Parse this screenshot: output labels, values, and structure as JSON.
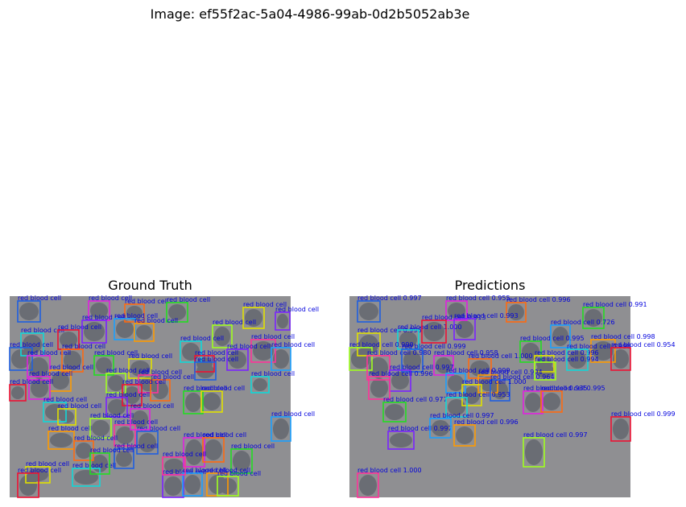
{
  "figure_title": "Image: ef55f2ac-5a04-4986-99ab-0d2b5052ab3e",
  "panels": {
    "ground_truth": {
      "title": "Ground Truth"
    },
    "predictions": {
      "title": "Predictions"
    }
  },
  "class_label": "red blood cell",
  "ground_truth_box_count": 56,
  "prediction_scores": [
    "0.997",
    "0.955",
    "0.996",
    "0.991",
    "0.996",
    "1.000",
    "0.913",
    "0.993",
    "0.726",
    "0.998",
    "0.990",
    "0.980",
    "0.999",
    "0.958",
    "1.000",
    "0.995",
    "0.996",
    "0.998",
    "0.954",
    "0.997",
    "0.999",
    "0.994",
    "0.994",
    "0.996",
    "0.964",
    "0.935",
    "0.995",
    "0.977",
    "1.000",
    "0.953",
    "0.999",
    "0.997",
    "0.997",
    "0.996",
    "0.997",
    "1.000"
  ],
  "colors": {
    "background": "#8f8f92",
    "cell": "#6a6d74",
    "label_text": "#0000dd",
    "box_palette": [
      "#1f5fe0",
      "#e020e0",
      "#ff6a10",
      "#22dd22",
      "#e0e000",
      "#10d8d8",
      "#ee1133",
      "#7a22ff",
      "#1aa0ff",
      "#ff9a00",
      "#a0ff20",
      "#ff3399"
    ]
  }
}
